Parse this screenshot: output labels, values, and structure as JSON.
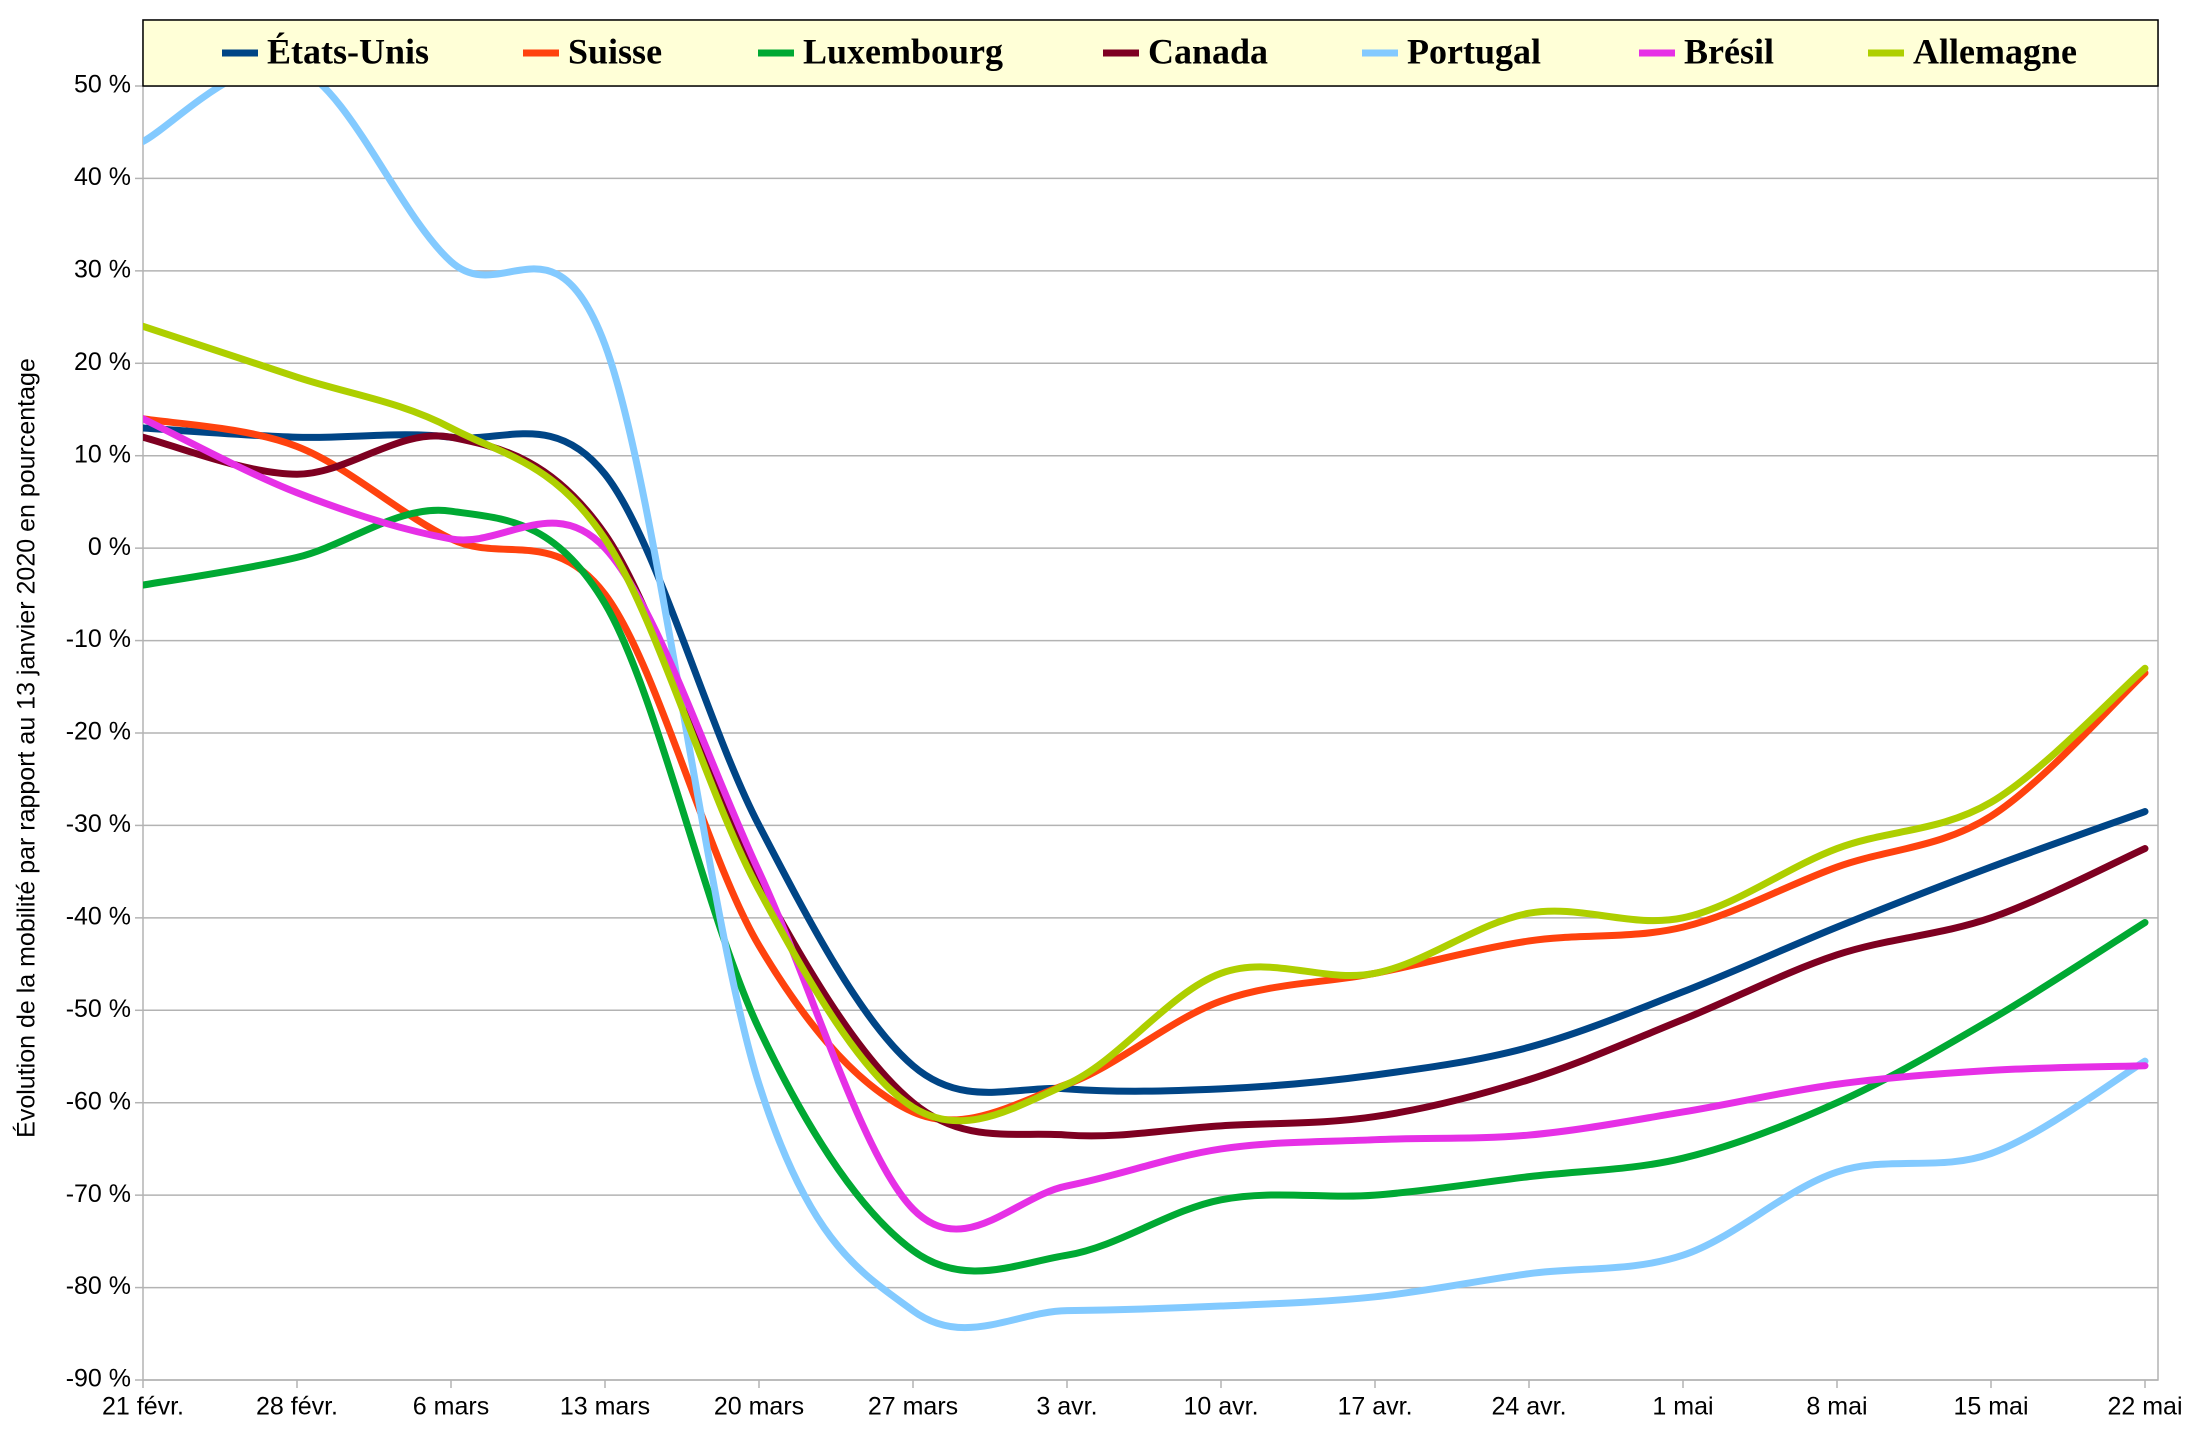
{
  "chart_data": {
    "type": "line",
    "y_label": "Évolution de la mobilité par rapport au 13 janvier 2020 en pourcentage",
    "categories": [
      "21 févr.",
      "28 févr.",
      "6 mars",
      "13 mars",
      "20 mars",
      "27 mars",
      "3 avr.",
      "10 avr.",
      "17 avr.",
      "24 avr.",
      "1 mai",
      "8 mai",
      "15 mai",
      "22 mai"
    ],
    "ylim": [
      -90,
      50
    ],
    "yticks": [
      {
        "value": 50,
        "label": "50 %"
      },
      {
        "value": 40,
        "label": "40 %"
      },
      {
        "value": 30,
        "label": "30 %"
      },
      {
        "value": 20,
        "label": "20 %"
      },
      {
        "value": 10,
        "label": "10 %"
      },
      {
        "value": 0,
        "label": "0 %"
      },
      {
        "value": -10,
        "label": "-10 %"
      },
      {
        "value": -20,
        "label": "-20 %"
      },
      {
        "value": -30,
        "label": "-30 %"
      },
      {
        "value": -40,
        "label": "-40 %"
      },
      {
        "value": -50,
        "label": "-50 %"
      },
      {
        "value": -60,
        "label": "-60 %"
      },
      {
        "value": -70,
        "label": "-70 %"
      },
      {
        "value": -80,
        "label": "-80 %"
      },
      {
        "value": -90,
        "label": "-90 %"
      }
    ],
    "grid": true,
    "legend": "top",
    "series": [
      {
        "name": "États-Unis",
        "color": "#004586",
        "values": [
          13,
          12,
          12,
          8,
          -30,
          -56,
          -58.5,
          -58.5,
          -57,
          -54,
          -48,
          -41,
          -34.5,
          -28.5
        ]
      },
      {
        "name": "Suisse",
        "color": "#ff420e",
        "values": [
          14,
          11,
          1,
          -5,
          -43,
          -61,
          -58,
          -49,
          -46,
          -42.5,
          -41,
          -34.5,
          -29,
          -13.5
        ]
      },
      {
        "name": "Luxembourg",
        "color": "#00a933",
        "values": [
          -4,
          -1,
          4,
          -6,
          -52,
          -76,
          -76.5,
          -70.5,
          -70,
          -68,
          -66,
          -60,
          -51,
          -40.5
        ]
      },
      {
        "name": "Canada",
        "color": "#7e0021",
        "values": [
          12,
          8,
          12,
          1.5,
          -36,
          -60,
          -63.5,
          -62.5,
          -61.5,
          -57.5,
          -51,
          -44,
          -40,
          -32.5
        ]
      },
      {
        "name": "Portugal",
        "color": "#83caff",
        "values": [
          44,
          52,
          31,
          22,
          -58,
          -82.5,
          -82.5,
          -82,
          -81,
          -78.5,
          -76.5,
          -67.5,
          -65.5,
          -55.5
        ]
      },
      {
        "name": "Brésil",
        "color": "#e630e6",
        "values": [
          14,
          6,
          1,
          0,
          -35,
          -71.5,
          -69,
          -65,
          -64,
          -63.5,
          -61,
          -58,
          -56.5,
          -56
        ]
      },
      {
        "name": "Allemagne",
        "color": "#aecf00",
        "values": [
          24,
          18.5,
          13,
          1,
          -37,
          -60.5,
          -58,
          -46,
          -46,
          -39.5,
          -40,
          -32.5,
          -27.5,
          -13
        ]
      }
    ]
  }
}
